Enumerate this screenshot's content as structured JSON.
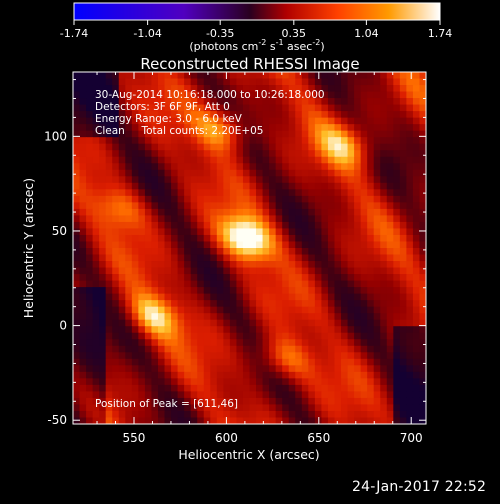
{
  "colorbar": {
    "ticks": [
      "-1.74",
      "-1.04",
      "-0.35",
      "0.35",
      "1.04",
      "1.74"
    ],
    "units_prefix": "(photons cm",
    "units_exp1": "-2",
    "units_mid": " s",
    "units_exp2": "-1",
    "units_mid2": " asec",
    "units_exp3": "-2",
    "units_suffix": ")",
    "range": [
      -1.74,
      1.74
    ],
    "colors": [
      "#0000ff",
      "#5000c0",
      "#2a0020",
      "#b00000",
      "#ff4000",
      "#ff9a00",
      "#ffffff"
    ]
  },
  "chart_data": {
    "type": "heatmap",
    "title": "Reconstructed RHESSI Image",
    "xlabel": "Heliocentric X (arcsec)",
    "ylabel": "Heliocentric Y (arcsec)",
    "xlim": [
      517,
      708
    ],
    "ylim": [
      -52,
      134
    ],
    "xticks": [
      "550",
      "600",
      "650",
      "700"
    ],
    "yticks": [
      "-50",
      "0",
      "50",
      "100"
    ],
    "annotations": {
      "line1": "30-Aug-2014 10:16:18.000 to 10:26:18.000",
      "line2": "Detectors: 3F 6F 9F, Att 0",
      "line3": "Energy Range: 3.0 - 6.0 keV",
      "line4": "Clean     Total counts: 2.20E+05",
      "peak": "Position of Peak = [611,46]"
    },
    "peak": [
      611,
      46
    ],
    "sources": [
      {
        "x": 611,
        "y": 46,
        "amp": 1.0
      },
      {
        "x": 560,
        "y": 5,
        "amp": 0.7
      },
      {
        "x": 598,
        "y": 104,
        "amp": 0.7
      },
      {
        "x": 630,
        "y": -18,
        "amp": 0.6
      },
      {
        "x": 665,
        "y": 95,
        "amp": 0.55
      },
      {
        "x": 543,
        "y": 62,
        "amp": 0.45
      }
    ]
  },
  "timestamp": "24-Jan-2017 22:52"
}
